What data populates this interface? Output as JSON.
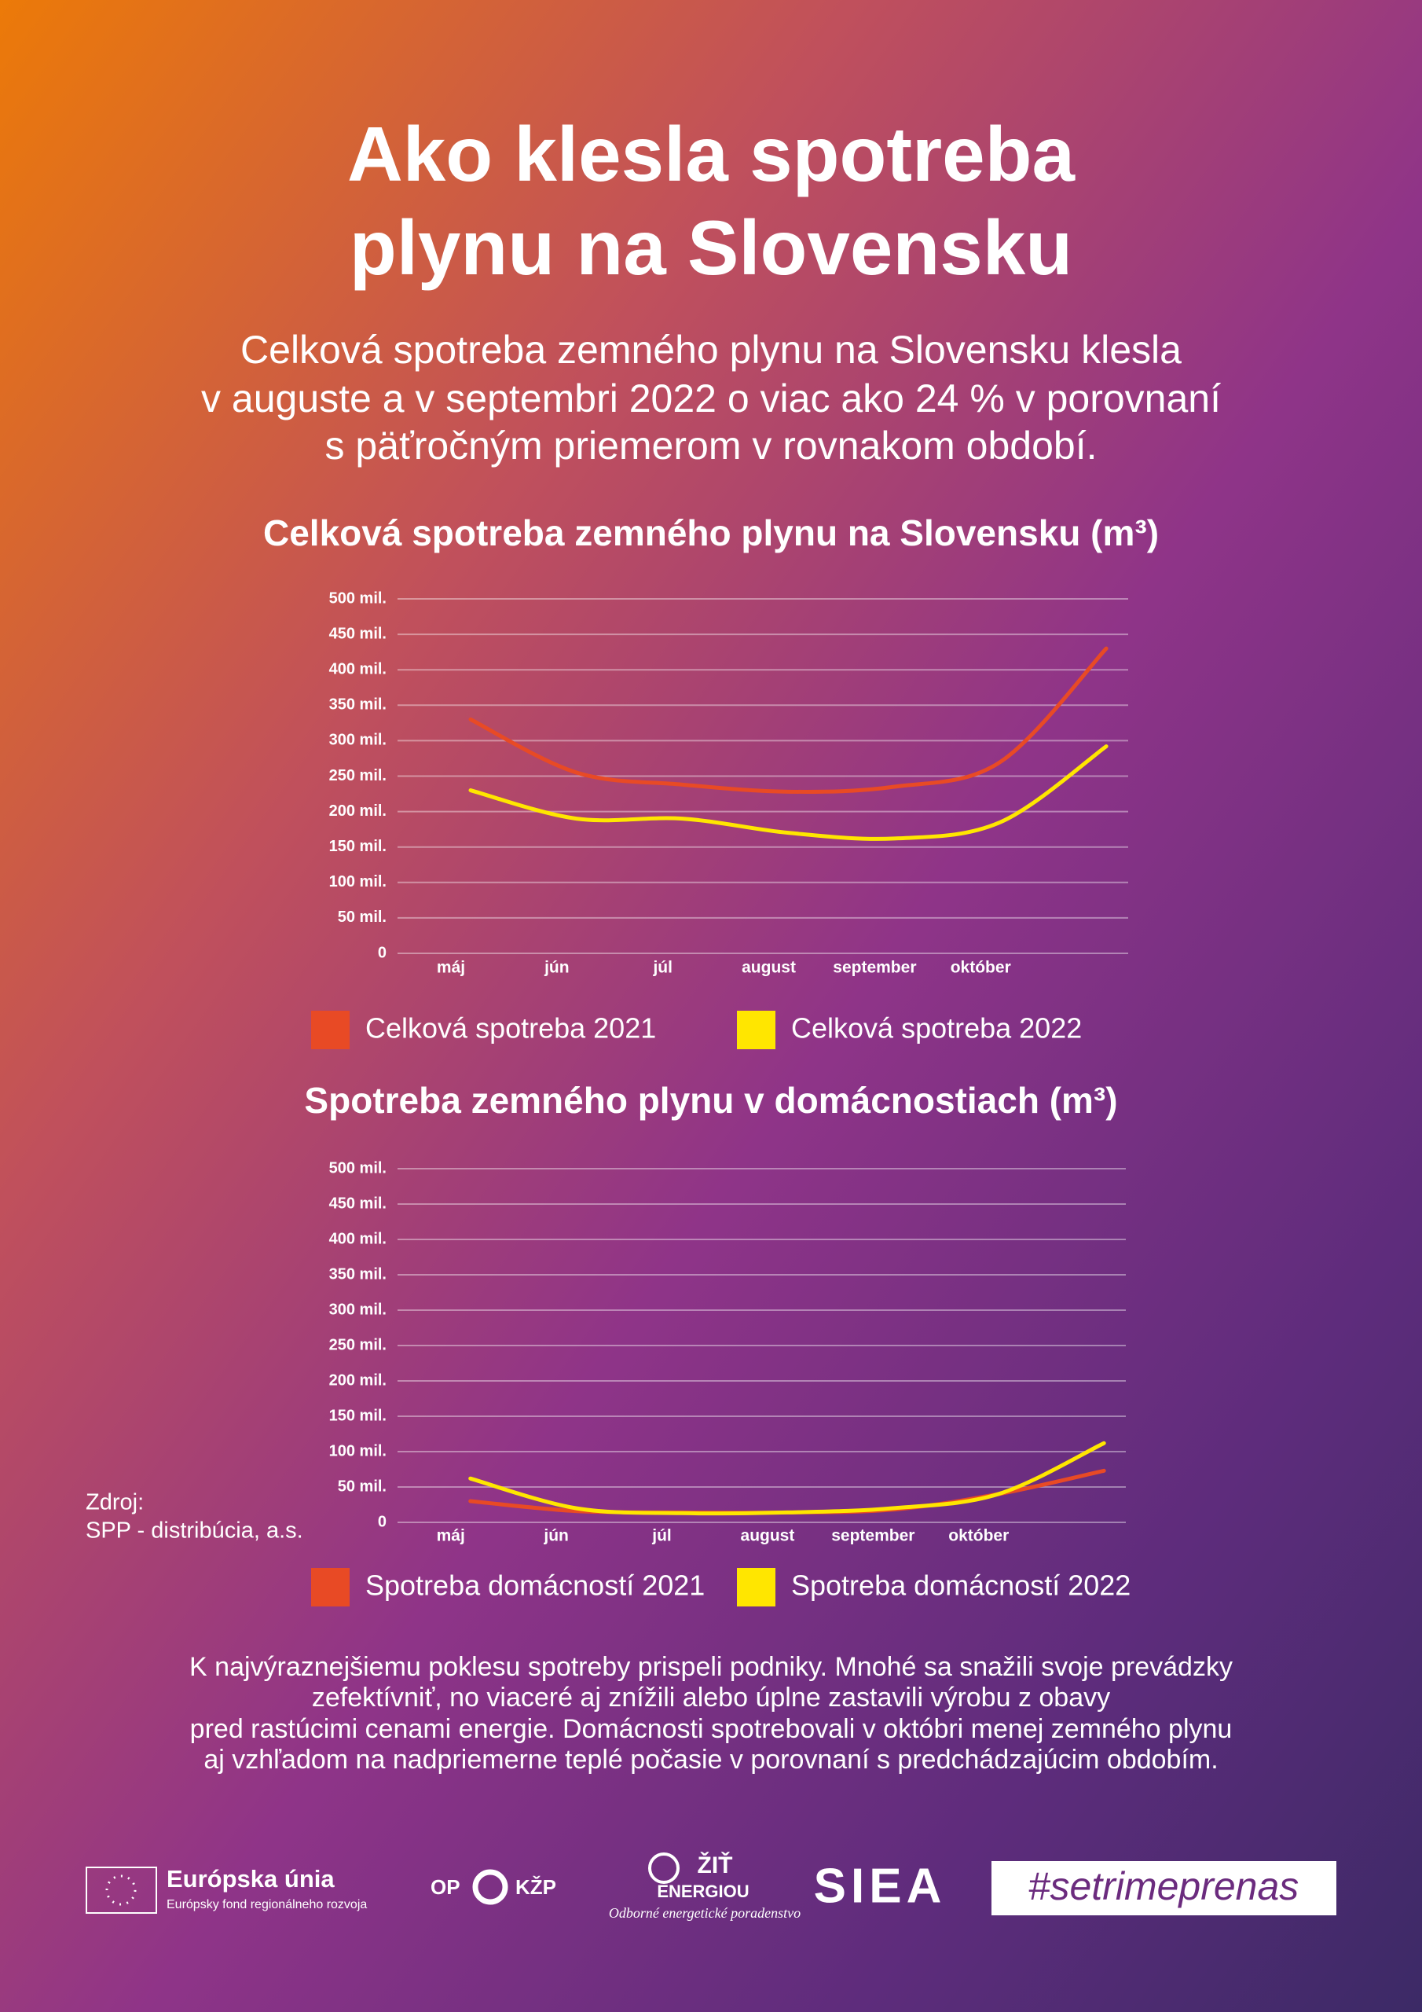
{
  "title": [
    "Ako klesla spotreba",
    "plynu na Slovensku"
  ],
  "intro": [
    "Celková spotreba zemného plynu na Slovensku klesla",
    "v auguste a v septembri 2022 o viac ako 24 % v porovnaní",
    "s päťročným priemerom v rovnakom období."
  ],
  "chart_data": [
    {
      "type": "line",
      "title": "Celková spotreba zemného plynu na Slovensku (m³)",
      "categories": [
        "máj",
        "jún",
        "júl",
        "august",
        "september",
        "október",
        null
      ],
      "series": [
        {
          "name": "Celková spotreba 2021",
          "color": "#e84a25",
          "values": [
            330,
            255,
            238,
            228,
            235,
            270,
            430
          ]
        },
        {
          "name": "Celková spotreba 2022",
          "color": "#ffe600",
          "values": [
            230,
            190,
            190,
            170,
            162,
            185,
            292
          ]
        }
      ],
      "ylim": [
        0,
        500
      ],
      "yticks": [
        0,
        {
          "value": 50,
          "label": "50 mil."
        },
        {
          "value": 100,
          "label": "100 mil."
        },
        {
          "value": 150,
          "label": "150 mil."
        },
        {
          "value": 200,
          "label": "200 mil."
        },
        {
          "value": 250,
          "label": "250 mil."
        },
        {
          "value": 300,
          "label": "300 mil."
        },
        {
          "value": 350,
          "label": "350 mil."
        },
        {
          "value": 400,
          "label": "400 mil."
        },
        {
          "value": 450,
          "label": "450 mil."
        },
        {
          "value": 500,
          "label": "500 mil."
        }
      ],
      "grid": true,
      "legend": "bottom"
    },
    {
      "type": "line",
      "title": "Spotreba zemného plynu v domácnostiach (m³)",
      "categories": [
        "máj",
        "jún",
        "júl",
        "august",
        "september",
        "október",
        null
      ],
      "series": [
        {
          "name": "Spotreba domácností 2021",
          "color": "#e84a25",
          "values": [
            30,
            16,
            14,
            14,
            18,
            40,
            73
          ]
        },
        {
          "name": "Spotreba domácností 2022",
          "color": "#ffe600",
          "values": [
            62,
            20,
            13,
            14,
            20,
            40,
            112
          ]
        }
      ],
      "ylim": [
        0,
        500
      ],
      "yticks": [
        0,
        {
          "value": 50,
          "label": "50 mil."
        },
        {
          "value": 100,
          "label": "100 mil."
        },
        {
          "value": 150,
          "label": "150 mil."
        },
        {
          "value": 200,
          "label": "200 mil."
        },
        {
          "value": 250,
          "label": "250 mil."
        },
        {
          "value": 300,
          "label": "300 mil."
        },
        {
          "value": 350,
          "label": "350 mil."
        },
        {
          "value": 400,
          "label": "400 mil."
        },
        {
          "value": 450,
          "label": "450 mil."
        },
        {
          "value": 500,
          "label": "500 mil."
        }
      ],
      "grid": true,
      "legend": "bottom"
    }
  ],
  "source": [
    "Zdroj:",
    "SPP - distribúcia, a.s."
  ],
  "note": [
    "K najvýraznejšiemu poklesu spotreby prispeli podniky. Mnohé sa snažili svoje prevádzky",
    "zefektívniť, no viaceré aj znížili alebo úplne zastavili výrobu z obavy",
    "pred rastúcimi cenami energie. Domácnosti spotrebovali v októbri menej zemného plynu",
    "aj vzhľadom na nadpriemerne teplé počasie v porovnaní  s predchádzajúcim obdobím."
  ],
  "footer": {
    "eu_title": "Európska únia",
    "eu_subtitle": "Európsky fond regionálneho rozvoja",
    "op_left": "OP",
    "op_right": "KŽP",
    "ziv_top": "ŽIŤ",
    "ziv_bottom": "ENERGIOU",
    "ziv_tagline": "Odborné energetické poradenstvo",
    "siea": "SIEA",
    "hashtag": "#setrimeprenas"
  }
}
